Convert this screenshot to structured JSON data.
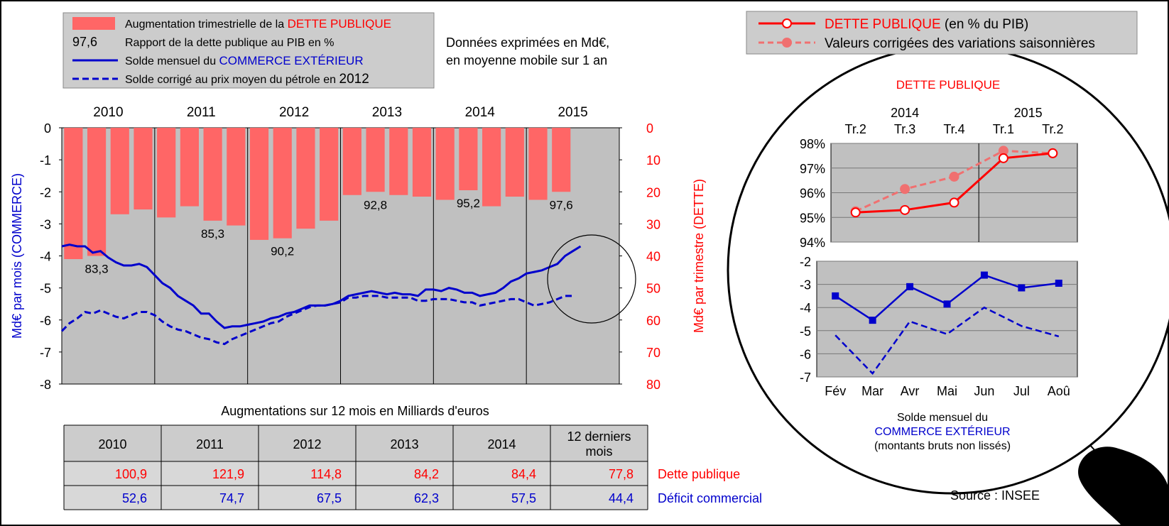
{
  "legend_main": {
    "items": [
      {
        "text": "Augmentation trimestrielle de la ",
        "highlight": "DETTE PUBLIQUE",
        "highlight_color": "#ff0000",
        "marker": "bar"
      },
      {
        "text": "Rapport de la dette publique au PIB en %",
        "highlight": "",
        "marker_text": "97,6",
        "marker": "text"
      },
      {
        "text": "Solde mensuel du ",
        "highlight": "COMMERCE EXTÉRIEUR",
        "highlight_color": "#0000cc",
        "marker": "line"
      },
      {
        "text": "Solde corrigé au prix moyen du pétrole en ",
        "highlight": "2012",
        "highlight_color": "#000000",
        "marker": "dash"
      }
    ]
  },
  "note": [
    "Données exprimées en Md€,",
    "en moyenne mobile sur 1 an"
  ],
  "legend_zoom": {
    "items": [
      {
        "text": "DETTE PUBLIQUE",
        "suffix": "  (en % du PIB)",
        "marker": "solid"
      },
      {
        "text": "Valeurs corrigées des variations saisonnières",
        "suffix": "",
        "marker": "dashed"
      }
    ]
  },
  "colors": {
    "bar": "#ff6666",
    "debt": "#ff0000",
    "debt_sa": "#f07070",
    "trade": "#0000cc",
    "plot_bg": "#c0c0c0",
    "panel_bg": "#cccccc"
  },
  "chart_data": [
    {
      "id": "main",
      "type": "bar+line",
      "year_labels": [
        "2010",
        "2011",
        "2012",
        "2013",
        "2014",
        "2015"
      ],
      "ylabel_left": "Md€ par mois (COMMERCE)",
      "ylabel_right": "Md€ par trimestre (DETTE)",
      "ylim_left": [
        -8,
        0
      ],
      "yticks_left": [
        "0",
        "-1",
        "-2",
        "-3",
        "-4",
        "-5",
        "-6",
        "-7",
        "-8"
      ],
      "ylim_right": [
        0,
        80
      ],
      "yticks_right": [
        "0",
        "10",
        "20",
        "30",
        "40",
        "50",
        "60",
        "70",
        "80"
      ],
      "x_start": 2010.0,
      "x_end": 2016.0,
      "bars": {
        "name": "Augmentation trimestrielle de la DETTE PUBLIQUE",
        "values": [
          41,
          40,
          27,
          25.5,
          28,
          24.5,
          29,
          30.5,
          35,
          34.5,
          31.5,
          29,
          21,
          20,
          21,
          21.5,
          22.5,
          19.5,
          24.5,
          21.5,
          22.5,
          20
        ]
      },
      "ratio_labels": [
        {
          "quarter": 1,
          "text": "83,3"
        },
        {
          "quarter": 6,
          "text": "85,3"
        },
        {
          "quarter": 9,
          "text": "90,2"
        },
        {
          "quarter": 13,
          "text": "92,8"
        },
        {
          "quarter": 17,
          "text": "95,2"
        },
        {
          "quarter": 21,
          "text": "97,6"
        }
      ],
      "series": [
        {
          "name": "Solde mensuel du COMMERCE EXTÉRIEUR",
          "style": "solid",
          "x_start": 2010.0,
          "x_step": 0.0833333,
          "values": [
            -3.7,
            -3.65,
            -3.7,
            -3.7,
            -3.9,
            -3.85,
            -4.05,
            -4.2,
            -4.3,
            -4.3,
            -4.25,
            -4.35,
            -4.6,
            -4.85,
            -5.0,
            -5.25,
            -5.4,
            -5.55,
            -5.8,
            -5.8,
            -6.05,
            -6.25,
            -6.2,
            -6.2,
            -6.15,
            -6.1,
            -6.05,
            -5.95,
            -5.9,
            -5.8,
            -5.75,
            -5.65,
            -5.55,
            -5.55,
            -5.55,
            -5.5,
            -5.4,
            -5.25,
            -5.2,
            -5.15,
            -5.1,
            -5.15,
            -5.2,
            -5.15,
            -5.2,
            -5.2,
            -5.25,
            -5.05,
            -5.05,
            -5.1,
            -5.0,
            -5.05,
            -5.15,
            -5.15,
            -5.25,
            -5.2,
            -5.15,
            -5.0,
            -4.8,
            -4.7,
            -4.55,
            -4.5,
            -4.45,
            -4.35,
            -4.25,
            -4.0,
            -3.85,
            -3.7
          ]
        },
        {
          "name": "Solde corrigé au prix moyen du pétrole en 2012",
          "style": "dashed",
          "x_start": 2010.0,
          "x_step": 0.0833333,
          "values": [
            -6.35,
            -6.1,
            -5.95,
            -5.75,
            -5.8,
            -5.7,
            -5.8,
            -5.9,
            -5.95,
            -5.85,
            -5.75,
            -5.75,
            -5.85,
            -6.05,
            -6.2,
            -6.3,
            -6.35,
            -6.45,
            -6.55,
            -6.6,
            -6.7,
            -6.75,
            -6.6,
            -6.5,
            -6.4,
            -6.3,
            -6.2,
            -6.1,
            -6.05,
            -5.9,
            -5.8,
            -5.7,
            -5.6,
            -5.55,
            -5.55,
            -5.5,
            -5.45,
            -5.3,
            -5.3,
            -5.25,
            -5.25,
            -5.25,
            -5.3,
            -5.3,
            -5.3,
            -5.3,
            -5.4,
            -5.4,
            -5.35,
            -5.35,
            -5.35,
            -5.4,
            -5.45,
            -5.45,
            -5.55,
            -5.5,
            -5.45,
            -5.4,
            -5.35,
            -5.35,
            -5.45,
            -5.55,
            -5.5,
            -5.45,
            -5.35,
            -5.25,
            -5.25
          ]
        }
      ]
    },
    {
      "id": "zoom_debt",
      "type": "line",
      "title": "DETTE PUBLIQUE",
      "years": [
        {
          "text": "2014",
          "at": 1
        },
        {
          "text": "2015",
          "at": 3.5
        }
      ],
      "categories": [
        "Tr.2",
        "Tr.3",
        "Tr.4",
        "Tr.1",
        "Tr.2"
      ],
      "ylim": [
        94,
        98
      ],
      "yticks": [
        "98%",
        "97%",
        "96%",
        "95%",
        "94%"
      ],
      "series": [
        {
          "name": "DETTE PUBLIQUE (en % du PIB)",
          "style": "solid",
          "values": [
            95.2,
            95.3,
            95.6,
            97.4,
            97.6
          ]
        },
        {
          "name": "Valeurs corrigées des variations saisonnières",
          "style": "dashed",
          "values": [
            95.25,
            96.15,
            96.65,
            97.7,
            97.6
          ]
        }
      ]
    },
    {
      "id": "zoom_trade",
      "type": "line",
      "categories": [
        "Fév",
        "Mar",
        "Avr",
        "Mai",
        "Jun",
        "Jul",
        "Aoû"
      ],
      "ylim": [
        -7,
        -2
      ],
      "yticks": [
        "-2",
        "-3",
        "-4",
        "-5",
        "-6",
        "-7"
      ],
      "caption": [
        "Solde mensuel du",
        "COMMERCE EXTÉRIEUR",
        "(montants bruts non lissés)"
      ],
      "series": [
        {
          "name": "brut",
          "style": "solid",
          "values": [
            -3.5,
            -4.55,
            -3.1,
            -3.85,
            -2.6,
            -3.15,
            -2.95
          ]
        },
        {
          "name": "corrigé",
          "style": "dashed",
          "values": [
            -5.2,
            -6.85,
            -4.6,
            -5.15,
            -4.0,
            -4.8,
            -5.25
          ]
        }
      ]
    }
  ],
  "table": {
    "title": "Augmentations sur 12 mois en Milliards d'euros",
    "headers": [
      "2010",
      "2011",
      "2012",
      "2013",
      "2014",
      "12 derniers mois"
    ],
    "header_last_lines": [
      "12 derniers",
      "mois"
    ],
    "rows": [
      {
        "label": "Dette publique",
        "color": "#ff0000",
        "values": [
          "100,9",
          "121,9",
          "114,8",
          "84,2",
          "84,4",
          "77,8"
        ]
      },
      {
        "label": "Déficit commercial",
        "color": "#0000cc",
        "values": [
          "52,6",
          "74,7",
          "67,5",
          "62,3",
          "57,5",
          "44,4"
        ]
      }
    ]
  },
  "source": "Source : INSEE"
}
